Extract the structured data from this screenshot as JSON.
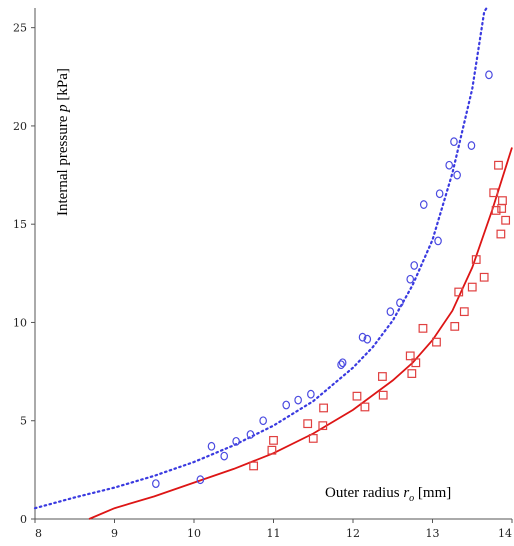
{
  "chart_data": {
    "type": "scatter",
    "xlabel": "Outer radius r_o [mm]",
    "xlabel_main": "Outer radius ",
    "xlabel_sym": "r",
    "xlabel_sub": "o",
    "xlabel_unit": " [mm]",
    "ylabel": "Internal pressure p [kPa]",
    "ylabel_main": "Internal pressure ",
    "ylabel_sym": "p",
    "ylabel_unit": " [kPa]",
    "xlim": [
      8,
      14
    ],
    "ylim": [
      0,
      26
    ],
    "xticks": [
      8,
      9,
      10,
      11,
      12,
      13,
      14
    ],
    "yticks": [
      0,
      5,
      10,
      15,
      20,
      25
    ],
    "grid": false,
    "series": [
      {
        "marker": "circle",
        "color": "#4a4ae0",
        "points": [
          [
            9.52,
            1.8
          ],
          [
            10.08,
            2.0
          ],
          [
            10.22,
            3.7
          ],
          [
            10.38,
            3.2
          ],
          [
            10.53,
            3.95
          ],
          [
            10.71,
            4.3
          ],
          [
            10.87,
            5.0
          ],
          [
            11.16,
            5.8
          ],
          [
            11.31,
            6.05
          ],
          [
            11.47,
            6.35
          ],
          [
            11.85,
            7.85
          ],
          [
            11.87,
            7.95
          ],
          [
            12.12,
            9.25
          ],
          [
            12.18,
            9.15
          ],
          [
            12.47,
            10.55
          ],
          [
            12.59,
            11.0
          ],
          [
            12.72,
            12.2
          ],
          [
            12.77,
            12.9
          ],
          [
            12.89,
            16.0
          ],
          [
            13.07,
            14.15
          ],
          [
            13.09,
            16.55
          ],
          [
            13.21,
            18.0
          ],
          [
            13.27,
            19.2
          ],
          [
            13.31,
            17.5
          ],
          [
            13.49,
            19.0
          ],
          [
            13.71,
            22.6
          ]
        ]
      },
      {
        "marker": "square",
        "color": "#e04040",
        "points": [
          [
            10.75,
            2.7
          ],
          [
            10.98,
            3.5
          ],
          [
            11.0,
            4.0
          ],
          [
            11.43,
            4.85
          ],
          [
            11.5,
            4.1
          ],
          [
            11.62,
            4.75
          ],
          [
            11.63,
            5.65
          ],
          [
            12.05,
            6.25
          ],
          [
            12.15,
            5.7
          ],
          [
            12.37,
            7.25
          ],
          [
            12.38,
            6.3
          ],
          [
            12.72,
            8.3
          ],
          [
            12.74,
            7.4
          ],
          [
            12.79,
            7.95
          ],
          [
            12.88,
            9.7
          ],
          [
            13.05,
            9.0
          ],
          [
            13.28,
            9.8
          ],
          [
            13.33,
            11.55
          ],
          [
            13.4,
            10.55
          ],
          [
            13.5,
            11.8
          ],
          [
            13.55,
            13.2
          ],
          [
            13.65,
            12.3
          ],
          [
            13.77,
            16.6
          ],
          [
            13.8,
            15.7
          ],
          [
            13.83,
            18.0
          ],
          [
            13.86,
            14.5
          ],
          [
            13.87,
            15.8
          ],
          [
            13.88,
            16.2
          ],
          [
            13.92,
            15.2
          ]
        ]
      }
    ],
    "fits": [
      {
        "style": "dotted",
        "color": "#3a3ae0",
        "points": [
          [
            8.0,
            0.55
          ],
          [
            8.5,
            1.1
          ],
          [
            9.0,
            1.6
          ],
          [
            9.5,
            2.2
          ],
          [
            10.0,
            2.9
          ],
          [
            10.5,
            3.75
          ],
          [
            11.0,
            4.75
          ],
          [
            11.5,
            6.0
          ],
          [
            12.0,
            7.7
          ],
          [
            12.25,
            8.75
          ],
          [
            12.5,
            10.1
          ],
          [
            12.75,
            11.9
          ],
          [
            13.0,
            14.2
          ],
          [
            13.25,
            17.6
          ],
          [
            13.5,
            21.9
          ],
          [
            13.65,
            25.8
          ],
          [
            13.68,
            26.0
          ]
        ]
      },
      {
        "style": "solid",
        "color": "#dd1515",
        "points": [
          [
            8.68,
            0.0
          ],
          [
            9.0,
            0.55
          ],
          [
            9.5,
            1.15
          ],
          [
            10.0,
            1.85
          ],
          [
            10.5,
            2.55
          ],
          [
            11.0,
            3.35
          ],
          [
            11.5,
            4.35
          ],
          [
            12.0,
            5.55
          ],
          [
            12.5,
            7.05
          ],
          [
            12.75,
            7.95
          ],
          [
            13.0,
            9.1
          ],
          [
            13.25,
            10.6
          ],
          [
            13.5,
            12.8
          ],
          [
            13.75,
            15.7
          ],
          [
            14.0,
            18.9
          ]
        ]
      }
    ]
  }
}
